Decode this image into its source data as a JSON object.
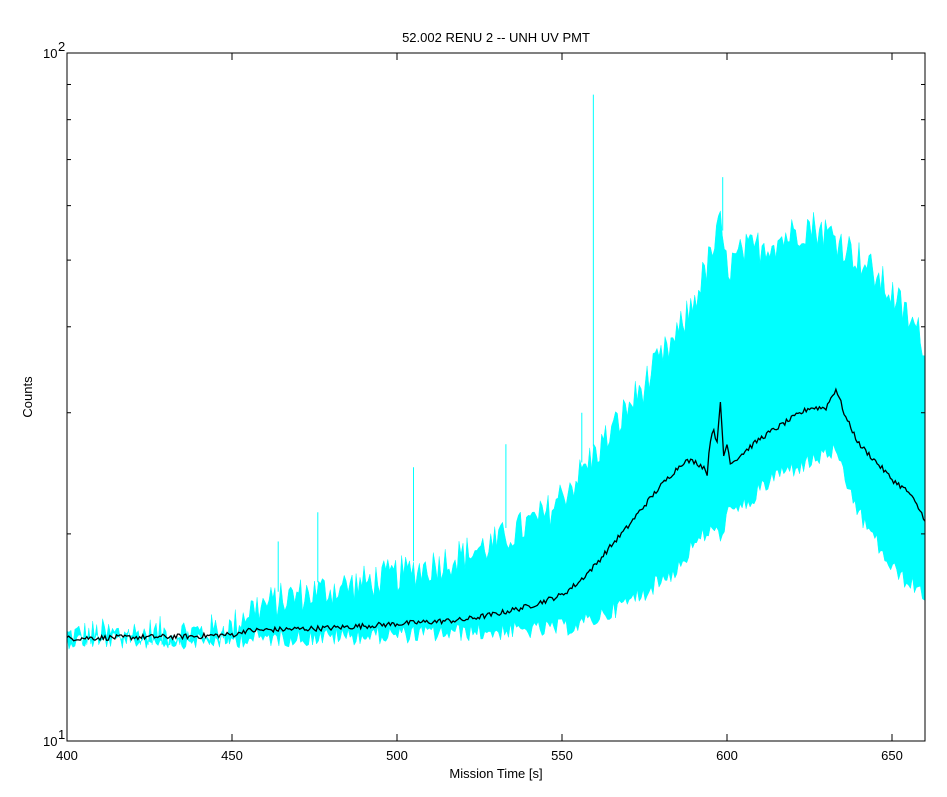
{
  "chart_data": {
    "type": "line",
    "title": "52.002 RENU 2 -- UNH UV PMT",
    "xlabel": "Mission Time [s]",
    "ylabel": "Counts",
    "xlim": [
      400,
      660
    ],
    "ylim": [
      10,
      100
    ],
    "yscale": "log",
    "grid": false,
    "legend": "none",
    "x_ticks": [
      400,
      450,
      500,
      550,
      600,
      650
    ],
    "x_tick_labels": [
      "400",
      "450",
      "500",
      "550",
      "600",
      "650"
    ],
    "y_ticks": [
      10,
      100
    ],
    "y_tick_labels": [
      {
        "base": "10",
        "exp": "1"
      },
      {
        "base": "10",
        "exp": "2"
      }
    ],
    "y_minor_ticks": [
      20,
      30,
      40,
      50,
      60,
      70,
      80,
      90
    ],
    "series": [
      {
        "color": "#00ffff",
        "kind": "raw",
        "x": [
          400,
          420,
          440,
          450,
          455,
          470,
          490,
          510,
          530,
          545,
          555,
          565,
          575,
          585,
          590,
          595,
          598,
          600,
          605,
          615,
          625,
          632,
          640,
          650,
          660
        ],
        "lower": [
          13.8,
          13.8,
          13.8,
          13.8,
          13.9,
          13.9,
          14.0,
          14.1,
          14.2,
          14.3,
          14.5,
          15.2,
          16.2,
          17.5,
          19.0,
          20.0,
          19.5,
          21.0,
          21.5,
          24.0,
          25.0,
          26.0,
          21.0,
          17.5,
          16.0
        ],
        "upper": [
          14.6,
          14.7,
          14.8,
          15.0,
          16.0,
          16.8,
          17.5,
          18.5,
          20.0,
          22.0,
          25.0,
          29.0,
          34.0,
          40.0,
          45.0,
          52.0,
          58.0,
          50.0,
          53.0,
          55.0,
          58.0,
          56.0,
          52.0,
          46.0,
          39.0
        ],
        "spikes": [
          {
            "x": 559.5,
            "y": 87
          },
          {
            "x": 598.7,
            "y": 66
          },
          {
            "x": 556.0,
            "y": 30
          },
          {
            "x": 533.0,
            "y": 27
          },
          {
            "x": 505.0,
            "y": 25
          },
          {
            "x": 476.0,
            "y": 21.5
          },
          {
            "x": 464.0,
            "y": 19.5
          }
        ]
      },
      {
        "color": "#000000",
        "kind": "smoothed",
        "x": [
          400,
          420,
          440,
          452,
          453,
          460,
          480,
          500,
          520,
          530,
          540,
          550,
          555,
          560,
          570,
          580,
          587,
          590,
          593,
          594,
          595,
          596,
          597,
          598,
          599,
          600,
          601,
          602,
          610,
          620,
          625,
          630,
          633,
          636,
          640,
          650,
          655,
          660
        ],
        "y": [
          14.1,
          14.15,
          14.2,
          14.3,
          14.45,
          14.5,
          14.6,
          14.8,
          15.0,
          15.3,
          15.7,
          16.3,
          17.0,
          18.0,
          20.5,
          23.5,
          25.5,
          25.5,
          25.0,
          24.5,
          27.5,
          28.5,
          27.0,
          31.0,
          26.0,
          27.0,
          25.5,
          25.5,
          27.5,
          29.5,
          30.5,
          30.5,
          32.5,
          29.5,
          27.0,
          24.0,
          23.0,
          21.0
        ]
      }
    ]
  }
}
